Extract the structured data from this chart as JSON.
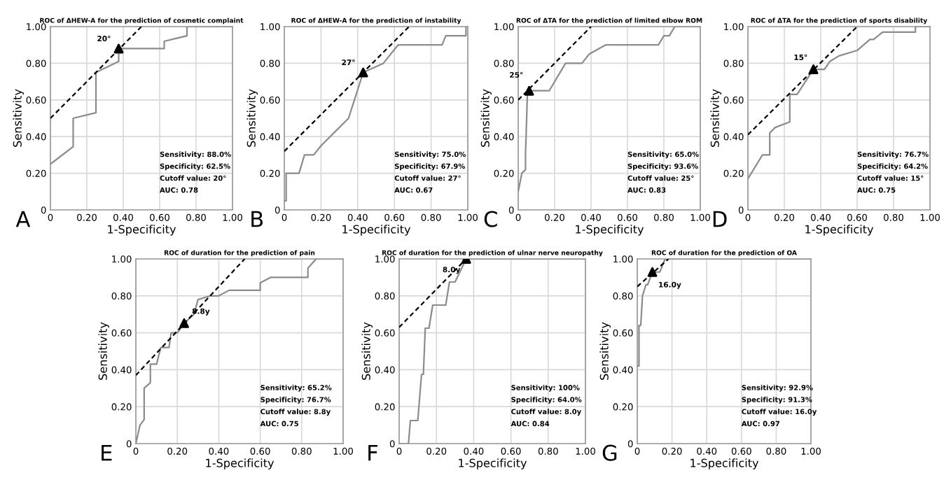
{
  "chart_data": [
    {
      "type": "line",
      "title": "ROC of ΔHEW-A for the prediction of cosmetic complaint",
      "xlabel": "1-Specificity",
      "ylabel": "Sensitivity",
      "xlim": [
        0,
        1
      ],
      "ylim": [
        0,
        1
      ],
      "xticks": [
        0,
        {
          "value": 0.2,
          "label": "0.20"
        },
        {
          "value": 0.4,
          "label": "0.40"
        },
        {
          "value": 0.6,
          "label": "0.60"
        },
        {
          "value": 0.8,
          "label": "0.80"
        },
        {
          "value": 1,
          "label": "1.00"
        }
      ],
      "yticks": [
        0,
        {
          "value": 0.2,
          "label": "0.20"
        },
        {
          "value": 0.4,
          "label": "0.40"
        },
        {
          "value": 0.6,
          "label": "0.60"
        },
        {
          "value": 0.8,
          "label": "0.80"
        },
        {
          "value": 1,
          "label": "1.00"
        }
      ],
      "grid": true,
      "series": [
        {
          "type": "line",
          "color": "#8c8c8c",
          "x": [
            0,
            0.125,
            0.125,
            0.25,
            0.25,
            0.375,
            0.375,
            0.625,
            0.625,
            0.75,
            0.75,
            1
          ],
          "values": [
            0.25,
            0.345,
            0.5,
            0.53,
            0.75,
            0.81,
            0.88,
            0.88,
            0.92,
            0.95,
            1,
            1
          ]
        },
        {
          "type": "line",
          "color": "#000000",
          "line_style": "dashed",
          "x": [
            0,
            0.5
          ],
          "values": [
            0.5,
            1
          ]
        },
        {
          "type": "scatter",
          "color": "#000000",
          "marker": "triangle",
          "x": [
            0.375
          ],
          "values": [
            0.88
          ]
        }
      ],
      "annotations": [
        "A",
        "Sensitivity: 88.0%",
        "Specificity: 62.5%",
        "Cutoff value: 20°",
        "AUC: 0.78",
        {
          "text": "20°",
          "x": 0.375,
          "y": 0.88
        }
      ]
    },
    {
      "type": "line",
      "title": "ROC of ΔHEW-A for the prediction of instability",
      "xlabel": "1-Specificity",
      "ylabel": "Sensitivity",
      "xlim": [
        0,
        1
      ],
      "ylim": [
        0,
        1
      ],
      "xticks": [
        0,
        {
          "value": 0.2,
          "label": "0.20"
        },
        {
          "value": 0.4,
          "label": "0.40"
        },
        {
          "value": 0.6,
          "label": "0.60"
        },
        {
          "value": 0.8,
          "label": "0.80"
        },
        {
          "value": 1,
          "label": "1.00"
        }
      ],
      "yticks": [
        0,
        {
          "value": 0.2,
          "label": "0.20"
        },
        {
          "value": 0.4,
          "label": "0.40"
        },
        {
          "value": 0.6,
          "label": "0.60"
        },
        {
          "value": 0.8,
          "label": "0.80"
        },
        {
          "value": 1,
          "label": "1.00"
        }
      ],
      "grid": true,
      "series": [
        {
          "type": "line",
          "color": "#8c8c8c",
          "x": [
            0,
            0.01,
            0.01,
            0.08,
            0.11,
            0.16,
            0.2,
            0.3,
            0.35,
            0.43,
            0.54,
            0.62,
            0.86,
            0.88,
            0.99,
            0.99,
            1
          ],
          "values": [
            0.05,
            0.05,
            0.2,
            0.2,
            0.3,
            0.3,
            0.35,
            0.45,
            0.5,
            0.75,
            0.8,
            0.9,
            0.9,
            0.95,
            0.95,
            1,
            1
          ]
        },
        {
          "type": "line",
          "color": "#000000",
          "line_style": "dashed",
          "x": [
            0,
            0.68
          ],
          "values": [
            0.32,
            1
          ]
        },
        {
          "type": "scatter",
          "color": "#000000",
          "marker": "triangle",
          "x": [
            0.43
          ],
          "values": [
            0.75
          ]
        }
      ],
      "annotations": [
        "B",
        "Sensitivity: 75.0%",
        "Specificity: 67.9%",
        "Cutoff value: 27°",
        "AUC: 0.67",
        {
          "text": "27°",
          "x": 0.43,
          "y": 0.75
        }
      ]
    },
    {
      "type": "line",
      "title": "ROC of ΔTA for the prediction of limited elbow ROM",
      "xlabel": "1-Specificity",
      "ylabel": "Sensitivity",
      "xlim": [
        0,
        1
      ],
      "ylim": [
        0,
        1
      ],
      "xticks": [
        0,
        {
          "value": 0.2,
          "label": "0.20"
        },
        {
          "value": 0.4,
          "label": "0.40"
        },
        {
          "value": 0.6,
          "label": "0.60"
        },
        {
          "value": 0.8,
          "label": "0.80"
        },
        {
          "value": 1,
          "label": "1.00"
        }
      ],
      "yticks": [
        0,
        {
          "value": 0.2,
          "label": "0.20"
        },
        {
          "value": 0.4,
          "label": "0.40"
        },
        {
          "value": 0.6,
          "label": "0.60"
        },
        {
          "value": 0.8,
          "label": "0.80"
        },
        {
          "value": 1,
          "label": "1.00"
        }
      ],
      "grid": true,
      "series": [
        {
          "type": "line",
          "color": "#8c8c8c",
          "x": [
            0,
            0.02,
            0.04,
            0.04,
            0.05,
            0.06,
            0.17,
            0.26,
            0.35,
            0.39,
            0.48,
            0.77,
            0.8,
            0.83,
            0.86,
            1
          ],
          "values": [
            0.1,
            0.2,
            0.22,
            0.3,
            0.62,
            0.65,
            0.65,
            0.8,
            0.8,
            0.85,
            0.9,
            0.9,
            0.95,
            0.95,
            1,
            1
          ]
        },
        {
          "type": "line",
          "color": "#000000",
          "line_style": "dashed",
          "x": [
            0,
            0.4
          ],
          "values": [
            0.6,
            1
          ]
        },
        {
          "type": "scatter",
          "color": "#000000",
          "marker": "triangle",
          "x": [
            0.06
          ],
          "values": [
            0.65
          ]
        }
      ],
      "annotations": [
        "C",
        "Sensitivity: 65.0%",
        "Specificity: 93.6%",
        "Cutoff value: 25°",
        "AUC: 0.83",
        {
          "text": "25°",
          "x": 0.06,
          "y": 0.65
        }
      ]
    },
    {
      "type": "line",
      "title": "ROC of ΔTA for the prediction of sports disability",
      "xlabel": "1-Specificity",
      "ylabel": "Sensitivity",
      "xlim": [
        0,
        1
      ],
      "ylim": [
        0,
        1
      ],
      "xticks": [
        0,
        {
          "value": 0.2,
          "label": "0.20"
        },
        {
          "value": 0.4,
          "label": "0.40"
        },
        {
          "value": 0.6,
          "label": "0.60"
        },
        {
          "value": 0.8,
          "label": "0.80"
        },
        {
          "value": 1,
          "label": "1.00"
        }
      ],
      "yticks": [
        0,
        {
          "value": 0.2,
          "label": "0.20"
        },
        {
          "value": 0.4,
          "label": "0.40"
        },
        {
          "value": 0.6,
          "label": "0.60"
        },
        {
          "value": 0.8,
          "label": "0.80"
        },
        {
          "value": 1,
          "label": "1.00"
        }
      ],
      "grid": true,
      "series": [
        {
          "type": "line",
          "color": "#8c8c8c",
          "x": [
            0,
            0.08,
            0.12,
            0.12,
            0.15,
            0.23,
            0.23,
            0.27,
            0.36,
            0.42,
            0.45,
            0.5,
            0.6,
            0.67,
            0.69,
            0.74,
            0.92,
            0.92,
            1
          ],
          "values": [
            0.17,
            0.3,
            0.3,
            0.42,
            0.45,
            0.48,
            0.63,
            0.63,
            0.767,
            0.767,
            0.81,
            0.84,
            0.87,
            0.93,
            0.93,
            0.97,
            0.97,
            1,
            1
          ]
        },
        {
          "type": "line",
          "color": "#000000",
          "line_style": "dashed",
          "x": [
            0,
            0.6
          ],
          "values": [
            0.41,
            1
          ]
        },
        {
          "type": "scatter",
          "color": "#000000",
          "marker": "triangle",
          "x": [
            0.36
          ],
          "values": [
            0.767
          ]
        }
      ],
      "annotations": [
        "D",
        "Sensitivity: 76.7%",
        "Specificity: 64.2%",
        "Cutoff value: 15°",
        "AUC: 0.75",
        {
          "text": "15°",
          "x": 0.36,
          "y": 0.767
        }
      ]
    },
    {
      "type": "line",
      "title": "ROC of duration for the prediction of pain",
      "xlabel": "1-Specificity",
      "ylabel": "Sensitivity",
      "xlim": [
        0,
        1
      ],
      "ylim": [
        0,
        1
      ],
      "xticks": [
        0,
        {
          "value": 0.2,
          "label": "0.20"
        },
        {
          "value": 0.4,
          "label": "0.40"
        },
        {
          "value": 0.6,
          "label": "0.60"
        },
        {
          "value": 0.8,
          "label": "0.80"
        },
        {
          "value": 1,
          "label": "1.00"
        }
      ],
      "yticks": [
        0,
        {
          "value": 0.2,
          "label": "0.20"
        },
        {
          "value": 0.4,
          "label": "0.40"
        },
        {
          "value": 0.6,
          "label": "0.60"
        },
        {
          "value": 0.8,
          "label": "0.80"
        },
        {
          "value": 1,
          "label": "1.00"
        }
      ],
      "grid": true,
      "series": [
        {
          "type": "line",
          "color": "#8c8c8c",
          "x": [
            0,
            0.02,
            0.04,
            0.04,
            0.07,
            0.07,
            0.1,
            0.12,
            0.16,
            0.17,
            0.2,
            0.233,
            0.28,
            0.3,
            0.36,
            0.4,
            0.45,
            0.6,
            0.6,
            0.65,
            0.83,
            0.83,
            0.87,
            1
          ],
          "values": [
            0,
            0.1,
            0.13,
            0.3,
            0.33,
            0.43,
            0.43,
            0.52,
            0.52,
            0.6,
            0.6,
            0.652,
            0.7,
            0.78,
            0.8,
            0.8,
            0.83,
            0.83,
            0.87,
            0.9,
            0.9,
            0.95,
            1,
            1
          ]
        },
        {
          "type": "line",
          "color": "#000000",
          "line_style": "dashed",
          "x": [
            0,
            0.525
          ],
          "values": [
            0.37,
            1
          ]
        },
        {
          "type": "scatter",
          "color": "#000000",
          "marker": "triangle",
          "x": [
            0.233
          ],
          "values": [
            0.652
          ]
        }
      ],
      "annotations": [
        "E",
        "Sensitivity: 65.2%",
        "Specificity: 76.7%",
        "Cutoff value: 8.8y",
        "AUC: 0.75",
        {
          "text": "8.8y",
          "x": 0.233,
          "y": 0.652
        }
      ]
    },
    {
      "type": "line",
      "title": "ROC of duration for the prediction of ulnar nerve neuropathy",
      "xlabel": "1-Specificity",
      "ylabel": "Sensitivity",
      "xlim": [
        0,
        1
      ],
      "ylim": [
        0,
        1
      ],
      "xticks": [
        0,
        {
          "value": 0.2,
          "label": "0.20"
        },
        {
          "value": 0.4,
          "label": "0.40"
        },
        {
          "value": 0.6,
          "label": "0.60"
        },
        {
          "value": 0.8,
          "label": "0.80"
        },
        {
          "value": 1,
          "label": "1.00"
        }
      ],
      "yticks": [
        0,
        {
          "value": 0.2,
          "label": "0.20"
        },
        {
          "value": 0.4,
          "label": "0.40"
        },
        {
          "value": 0.6,
          "label": "0.60"
        },
        {
          "value": 0.8,
          "label": "0.80"
        },
        {
          "value": 1,
          "label": "1.00"
        }
      ],
      "grid": true,
      "series": [
        {
          "type": "line",
          "color": "#8c8c8c",
          "x": [
            0,
            0.05,
            0.06,
            0.1,
            0.11,
            0.12,
            0.13,
            0.14,
            0.16,
            0.18,
            0.25,
            0.27,
            0.3,
            0.36,
            1
          ],
          "values": [
            0,
            0,
            0.125,
            0.125,
            0.25,
            0.375,
            0.375,
            0.625,
            0.625,
            0.75,
            0.75,
            0.875,
            0.875,
            1,
            1
          ]
        },
        {
          "type": "line",
          "color": "#000000",
          "line_style": "dashed",
          "x": [
            0,
            0.36
          ],
          "values": [
            0.63,
            1
          ]
        },
        {
          "type": "scatter",
          "color": "#000000",
          "marker": "triangle",
          "x": [
            0.36
          ],
          "values": [
            1
          ]
        }
      ],
      "annotations": [
        "F",
        "Sensitivity: 100%",
        "Specificity: 64.0%",
        "Cutoff value: 8.0y",
        "AUC: 0.84",
        {
          "text": "8.0y",
          "x": 0.36,
          "y": 1
        }
      ]
    },
    {
      "type": "line",
      "title": "ROC of duration for the prediction of OA",
      "xlabel": "1-Specificity",
      "ylabel": "Sensitivity",
      "xlim": [
        0,
        1
      ],
      "ylim": [
        0,
        1
      ],
      "xticks": [
        0,
        {
          "value": 0.2,
          "label": "0.20"
        },
        {
          "value": 0.4,
          "label": "0.40"
        },
        {
          "value": 0.6,
          "label": "0.60"
        },
        {
          "value": 0.8,
          "label": "0.80"
        },
        {
          "value": 1,
          "label": "1.00"
        }
      ],
      "yticks": [
        0,
        {
          "value": 0.2,
          "label": "0.20"
        },
        {
          "value": 0.4,
          "label": "0.40"
        },
        {
          "value": 0.6,
          "label": "0.60"
        },
        {
          "value": 0.8,
          "label": "0.80"
        },
        {
          "value": 1,
          "label": "1.00"
        }
      ],
      "grid": true,
      "series": [
        {
          "type": "line",
          "color": "#8c8c8c",
          "x": [
            0,
            0.01,
            0.01,
            0.02,
            0.03,
            0.05,
            0.06,
            0.087,
            0.13,
            0.16,
            1
          ],
          "values": [
            0.42,
            0.42,
            0.64,
            0.64,
            0.8,
            0.86,
            0.86,
            0.929,
            0.929,
            1,
            1
          ]
        },
        {
          "type": "line",
          "color": "#000000",
          "line_style": "dashed",
          "x": [
            0,
            0.18
          ],
          "values": [
            0.85,
            1
          ]
        },
        {
          "type": "scatter",
          "color": "#000000",
          "marker": "triangle",
          "x": [
            0.087
          ],
          "values": [
            0.929
          ]
        }
      ],
      "annotations": [
        "G",
        "Sensitivity: 92.9%",
        "Specificity: 91.3%",
        "Cutoff value: 16.0y",
        "AUC: 0.97",
        {
          "text": "16.0y",
          "x": 0.087,
          "y": 0.929
        }
      ]
    }
  ]
}
